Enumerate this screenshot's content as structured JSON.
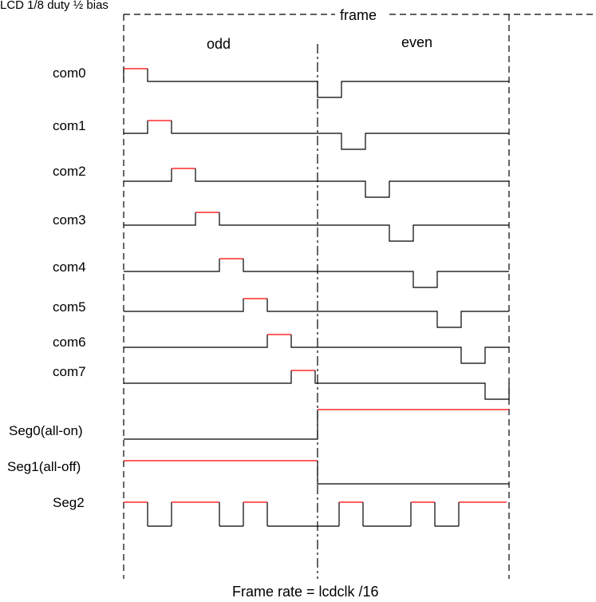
{
  "title": "LCD 1/8 duty ½ bias",
  "frame_label": "frame",
  "odd_label": "odd",
  "even_label": "even",
  "footer": "Frame rate = lcdclk /16",
  "colors": {
    "line": "#000000",
    "active": "#ff0000",
    "guide": "#000000"
  },
  "com_signals": [
    {
      "label": "com0",
      "slot": 0
    },
    {
      "label": "com1",
      "slot": 1
    },
    {
      "label": "com2",
      "slot": 2
    },
    {
      "label": "com3",
      "slot": 3
    },
    {
      "label": "com4",
      "slot": 4
    },
    {
      "label": "com5",
      "slot": 5
    },
    {
      "label": "com6",
      "slot": 6
    },
    {
      "label": "com7",
      "slot": 7
    }
  ],
  "seg_signals": [
    {
      "label": "Seg0(all-on)",
      "odd": "low",
      "even": "high"
    },
    {
      "label": "Seg1(all-off)",
      "odd": "high",
      "even": "low"
    },
    {
      "label": "Seg2",
      "odd_pattern": [
        1,
        0,
        1,
        1,
        0,
        1,
        0,
        0
      ],
      "even_pattern": [
        0,
        1,
        0,
        0,
        1,
        0,
        1,
        1
      ]
    }
  ]
}
